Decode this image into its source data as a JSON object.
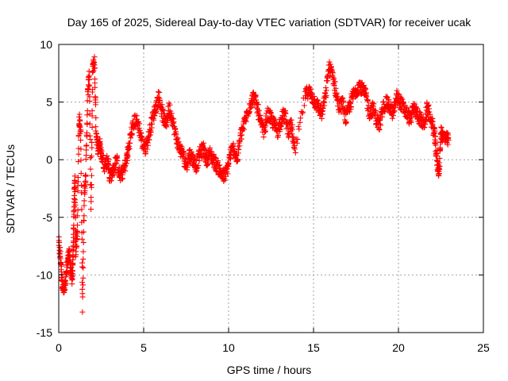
{
  "chart_data": {
    "type": "scatter",
    "title": "Day 165 of 2025, Sidereal Day-to-day VTEC variation (SDTVAR) for receiver ucak",
    "xlabel": "GPS time / hours",
    "ylabel": "SDTVAR / TECUs",
    "xlim": [
      0,
      25
    ],
    "ylim": [
      -15,
      10
    ],
    "x_ticks": [
      0,
      5,
      10,
      15,
      20,
      25
    ],
    "y_ticks": [
      -15,
      -10,
      -5,
      0,
      5,
      10
    ],
    "x_tick_labels": [
      "0",
      "5",
      "10",
      "15",
      "20",
      "25"
    ],
    "y_tick_labels": [
      "-15",
      "-10",
      "-5",
      "0",
      "5",
      "10"
    ],
    "grid": true,
    "marker": "+",
    "series": [
      {
        "name": "SDTVAR",
        "color": "#ff0000",
        "trace": [
          [
            0.0,
            -7.2
          ],
          [
            0.1,
            -8.5
          ],
          [
            0.2,
            -10.5
          ],
          [
            0.3,
            -11.5
          ],
          [
            0.4,
            -10.8
          ],
          [
            0.5,
            -9.0
          ],
          [
            0.6,
            -8.0
          ],
          [
            0.7,
            -9.5
          ],
          [
            0.8,
            -10.5
          ],
          [
            0.85,
            -8.0
          ],
          [
            0.9,
            -4.0
          ],
          [
            0.95,
            -1.5
          ],
          [
            1.0,
            -8.0
          ],
          [
            1.1,
            -6.0
          ],
          [
            1.2,
            3.8
          ],
          [
            1.3,
            2.0
          ],
          [
            1.4,
            -12.7
          ],
          [
            1.5,
            -3.0
          ],
          [
            1.6,
            -1.0
          ],
          [
            1.7,
            5.5
          ],
          [
            1.8,
            7.5
          ],
          [
            1.9,
            -4.5
          ],
          [
            2.0,
            8.0
          ],
          [
            2.1,
            8.5
          ],
          [
            2.2,
            2.5
          ],
          [
            2.3,
            1.0
          ],
          [
            2.4,
            1.5
          ],
          [
            2.5,
            0.5
          ],
          [
            2.7,
            -0.5
          ],
          [
            2.9,
            0.0
          ],
          [
            3.0,
            -1.5
          ],
          [
            3.2,
            -1.0
          ],
          [
            3.4,
            0.0
          ],
          [
            3.6,
            -1.5
          ],
          [
            3.8,
            -1.0
          ],
          [
            4.0,
            0.0
          ],
          [
            4.1,
            1.0
          ],
          [
            4.3,
            2.5
          ],
          [
            4.5,
            3.5
          ],
          [
            4.7,
            3.0
          ],
          [
            4.9,
            1.5
          ],
          [
            5.1,
            1.0
          ],
          [
            5.3,
            2.0
          ],
          [
            5.5,
            3.5
          ],
          [
            5.7,
            4.5
          ],
          [
            5.9,
            5.5
          ],
          [
            6.1,
            4.0
          ],
          [
            6.3,
            3.0
          ],
          [
            6.5,
            4.5
          ],
          [
            6.7,
            3.5
          ],
          [
            6.9,
            2.0
          ],
          [
            7.1,
            1.0
          ],
          [
            7.3,
            0.5
          ],
          [
            7.5,
            -0.5
          ],
          [
            7.7,
            0.5
          ],
          [
            7.9,
            0.0
          ],
          [
            8.1,
            -0.5
          ],
          [
            8.3,
            0.5
          ],
          [
            8.5,
            1.0
          ],
          [
            8.7,
            0.0
          ],
          [
            8.9,
            0.5
          ],
          [
            9.1,
            0.0
          ],
          [
            9.3,
            -0.5
          ],
          [
            9.5,
            -1.0
          ],
          [
            9.7,
            -1.5
          ],
          [
            9.9,
            -1.0
          ],
          [
            10.1,
            0.5
          ],
          [
            10.3,
            1.0
          ],
          [
            10.5,
            0.0
          ],
          [
            10.7,
            2.0
          ],
          [
            10.9,
            3.0
          ],
          [
            11.1,
            4.0
          ],
          [
            11.3,
            5.0
          ],
          [
            11.5,
            5.5
          ],
          [
            11.7,
            4.5
          ],
          [
            11.9,
            3.0
          ],
          [
            12.1,
            2.5
          ],
          [
            12.3,
            4.0
          ],
          [
            12.5,
            3.5
          ],
          [
            12.7,
            3.0
          ],
          [
            12.9,
            2.5
          ],
          [
            13.1,
            3.5
          ],
          [
            13.3,
            4.0
          ],
          [
            13.5,
            2.5
          ],
          [
            13.7,
            3.0
          ],
          [
            13.9,
            0.5
          ],
          [
            14.5,
            5.5
          ],
          [
            14.7,
            6.0
          ],
          [
            14.9,
            5.5
          ],
          [
            15.1,
            5.0
          ],
          [
            15.3,
            4.5
          ],
          [
            15.5,
            4.0
          ],
          [
            15.7,
            5.5
          ],
          [
            15.9,
            8.0
          ],
          [
            16.1,
            7.5
          ],
          [
            16.3,
            6.0
          ],
          [
            16.5,
            4.5
          ],
          [
            16.7,
            5.0
          ],
          [
            16.9,
            3.5
          ],
          [
            17.1,
            4.5
          ],
          [
            17.3,
            5.5
          ],
          [
            17.5,
            6.0
          ],
          [
            17.7,
            6.5
          ],
          [
            17.9,
            6.0
          ],
          [
            18.1,
            5.5
          ],
          [
            18.3,
            4.0
          ],
          [
            18.5,
            4.5
          ],
          [
            18.7,
            3.5
          ],
          [
            18.9,
            3.0
          ],
          [
            19.1,
            4.5
          ],
          [
            19.3,
            5.0
          ],
          [
            19.5,
            4.5
          ],
          [
            19.7,
            4.0
          ],
          [
            19.9,
            5.5
          ],
          [
            20.1,
            5.0
          ],
          [
            20.3,
            4.5
          ],
          [
            20.5,
            4.0
          ],
          [
            20.7,
            3.5
          ],
          [
            20.9,
            4.5
          ],
          [
            21.1,
            4.0
          ],
          [
            21.3,
            3.5
          ],
          [
            21.5,
            3.0
          ],
          [
            21.7,
            4.5
          ],
          [
            21.9,
            3.5
          ],
          [
            22.1,
            2.5
          ],
          [
            22.2,
            1.0
          ],
          [
            22.3,
            -0.5
          ],
          [
            22.4,
            -1.0
          ],
          [
            22.5,
            2.5
          ],
          [
            22.6,
            2.0
          ],
          [
            22.8,
            1.8
          ],
          [
            22.95,
            1.7
          ]
        ]
      }
    ]
  }
}
